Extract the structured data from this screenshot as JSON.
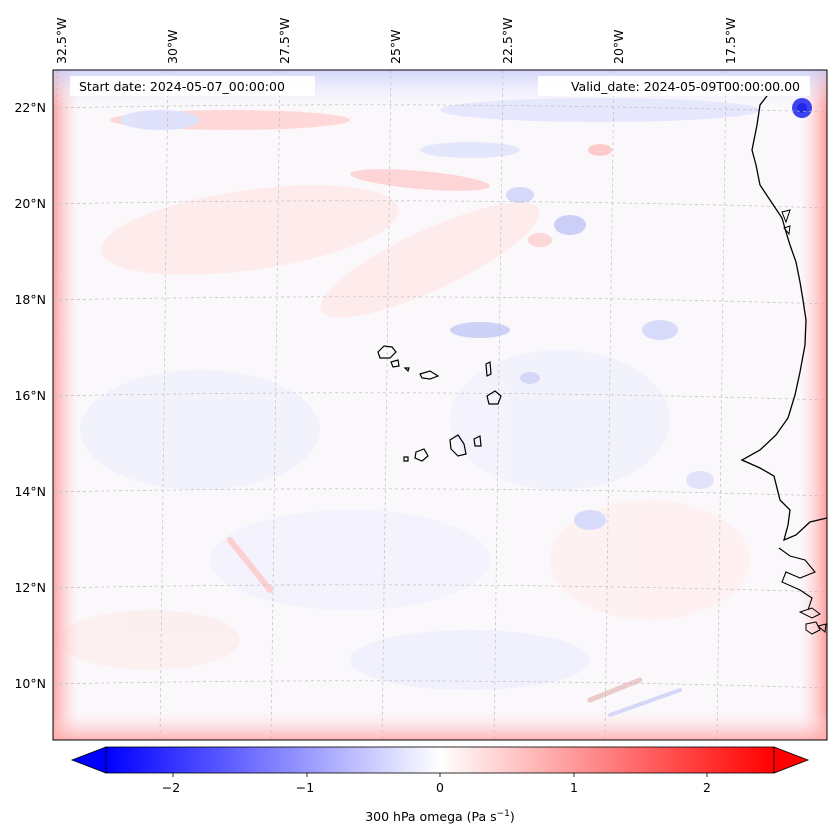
{
  "map": {
    "start_date": "Start date: 2024-05-07_00:00:00",
    "valid_date": "Valid_date: 2024-05-09T00:00:00.00",
    "lon_labels": [
      "32.5°W",
      "30°W",
      "27.5°W",
      "25°W",
      "22.5°W",
      "20°W",
      "17.5°W"
    ],
    "lat_labels": [
      "22°N",
      "20°N",
      "18°N",
      "16°N",
      "14°N",
      "12°N",
      "10°N"
    ],
    "colorbar": {
      "label": "300 hPa omega (Pa s",
      "label_exp": "−1",
      "label_close": ")",
      "ticks": [
        "−2",
        "−1",
        "0",
        "1",
        "2"
      ],
      "min_color": "#0000ff",
      "mid_color": "#ffffff",
      "max_color": "#ff0000"
    },
    "colors": {
      "coastline": "#000000",
      "grid": "#bdbdbd"
    }
  }
}
